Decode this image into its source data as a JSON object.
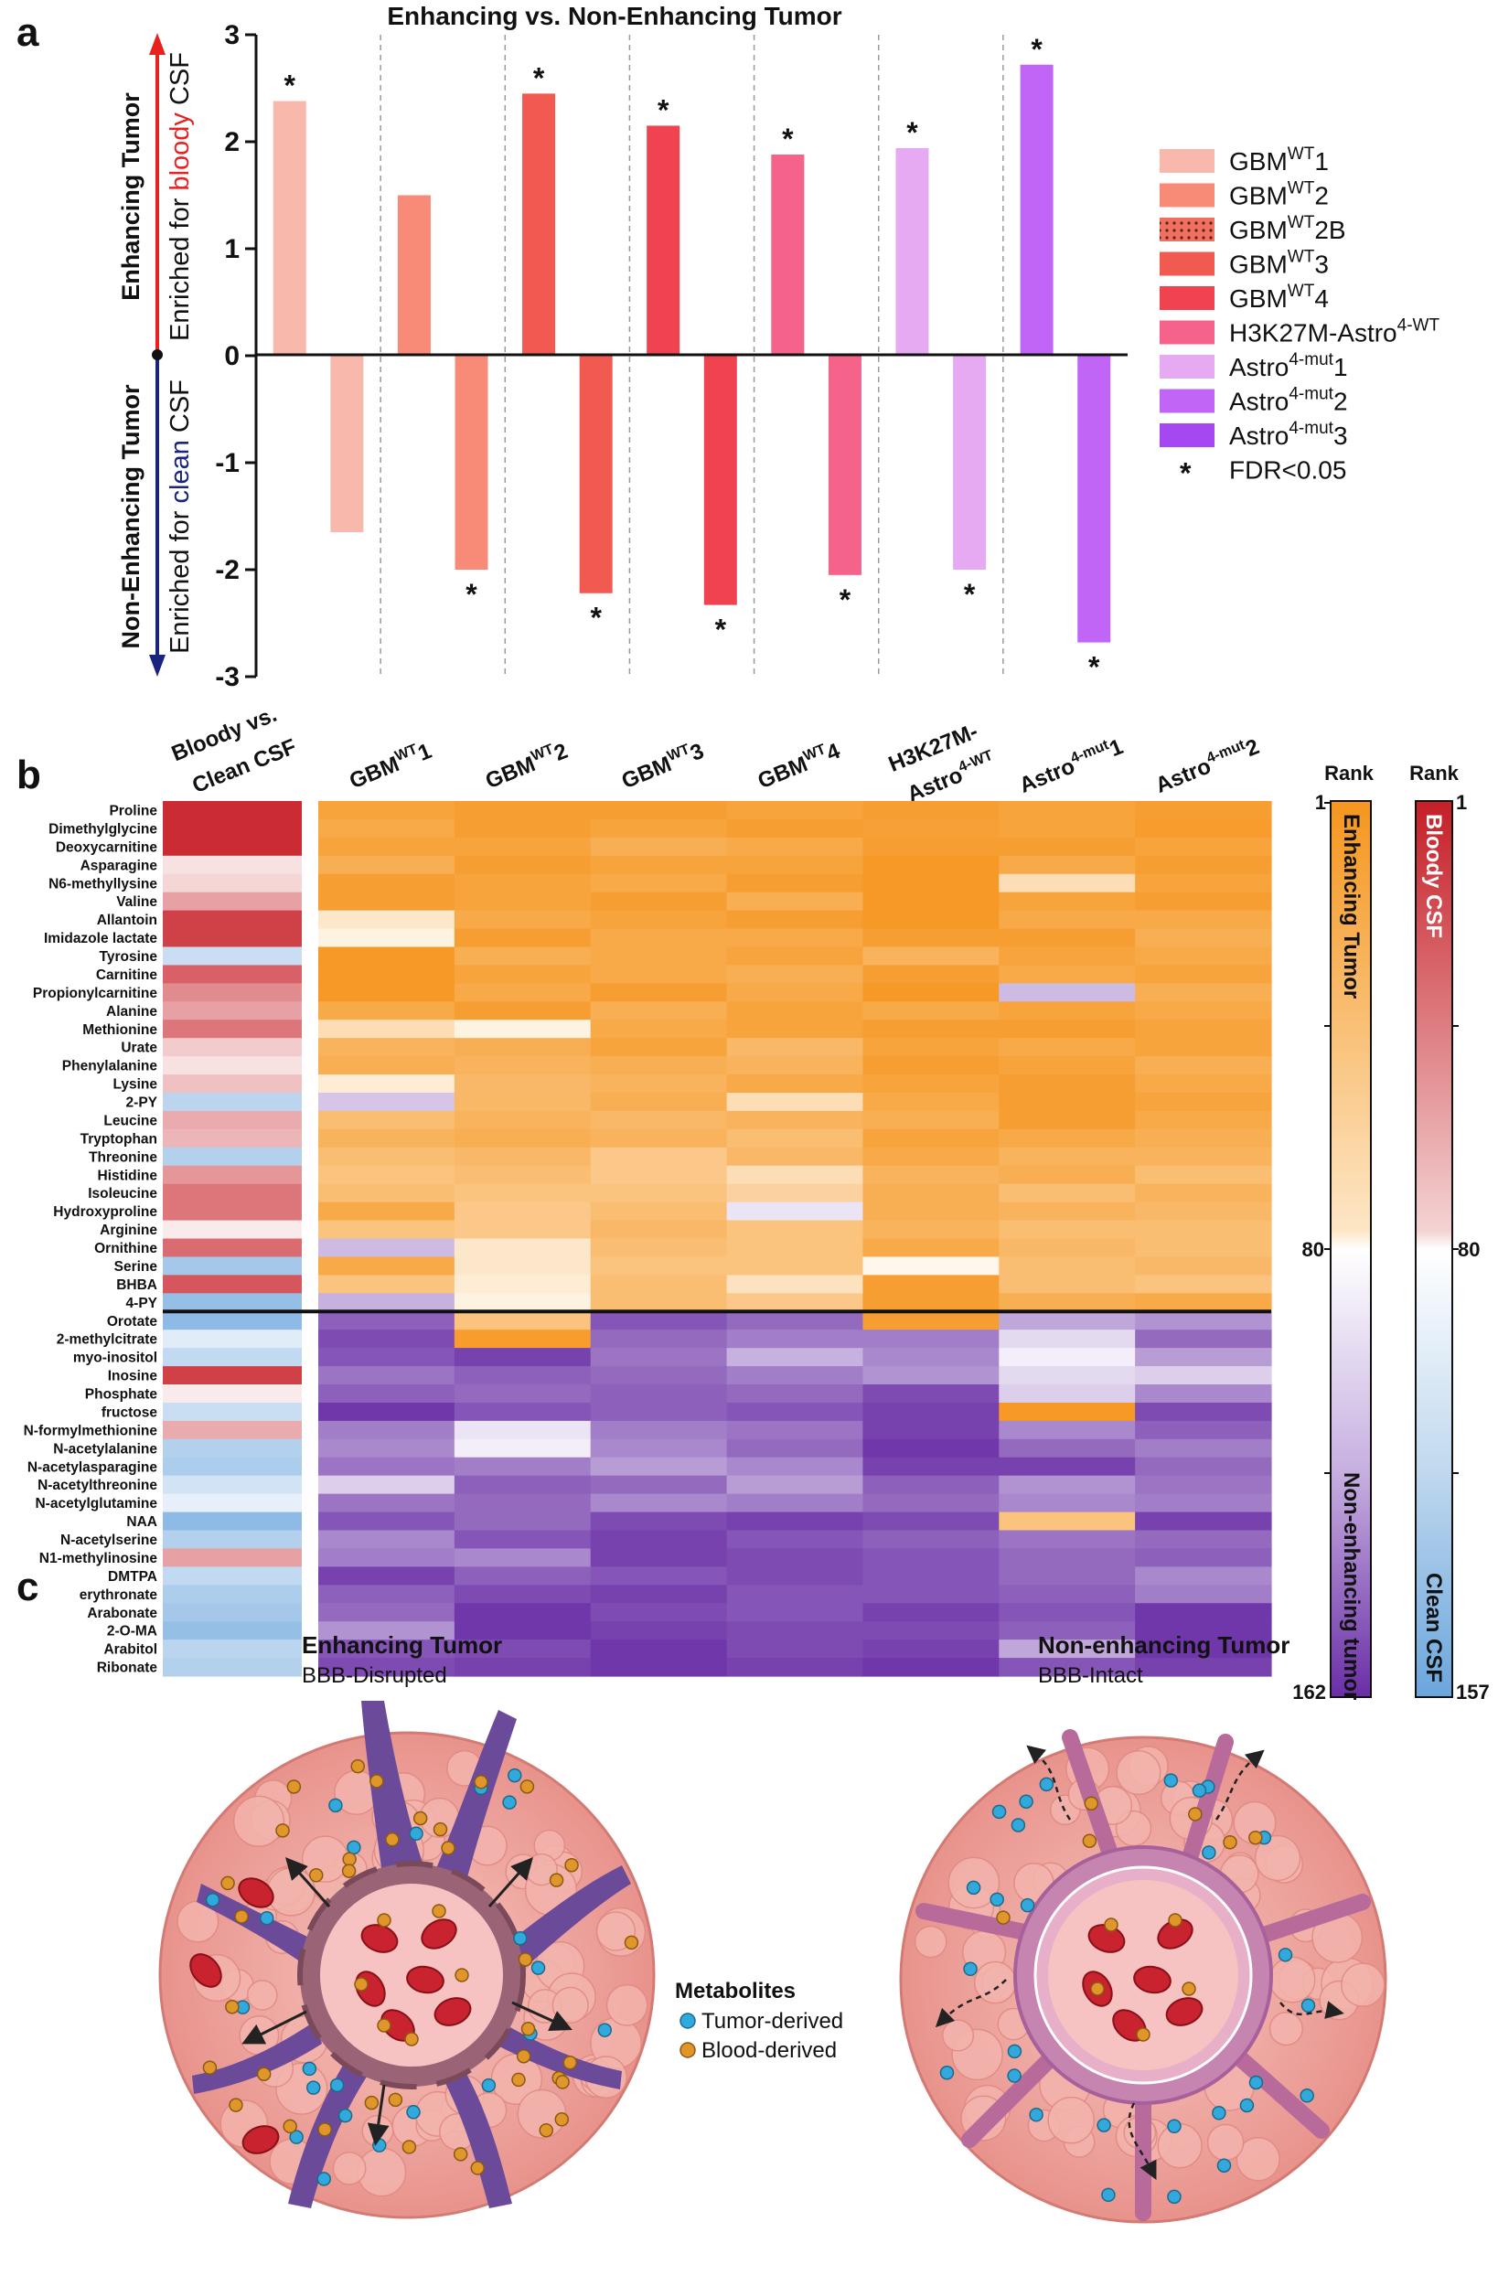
{
  "panels": {
    "a": "a",
    "b": "b",
    "c": "c"
  },
  "chart_data": [
    {
      "type": "bar",
      "title": "Enhancing vs. Non-Enhancing Tumor",
      "ylim": [
        -3,
        3
      ],
      "yticks": [
        "3",
        "2",
        "1",
        "0",
        "-1",
        "-2",
        "-3"
      ],
      "ylabel_top": "Enhancing Tumor",
      "ylabel_top_sub_prefix": "Enriched for ",
      "ylabel_top_sub_color_word": "bloody",
      "ylabel_top_sub_suffix": " CSF",
      "ylabel_bottom": "Non-Enhancing Tumor",
      "ylabel_bottom_sub_prefix": "Enriched for ",
      "ylabel_bottom_sub_color_word": "clean",
      "ylabel_bottom_sub_suffix": " CSF",
      "bars": [
        {
          "value": 2.38,
          "color": "#f9b8ac",
          "sig": "*"
        },
        {
          "value": -1.65,
          "color": "#f9b8ac",
          "sig": ""
        },
        {
          "value": 1.5,
          "color": "#f88a78",
          "sig": ""
        },
        {
          "value": -2.0,
          "color": "#f88a78",
          "sig": "*"
        },
        {
          "value": 2.45,
          "color": "#f05a50",
          "sig": "*"
        },
        {
          "value": -2.22,
          "color": "#f05a50",
          "sig": "*"
        },
        {
          "value": 2.15,
          "color": "#ef4450",
          "sig": "*"
        },
        {
          "value": -2.33,
          "color": "#ef4450",
          "sig": "*"
        },
        {
          "value": 1.88,
          "color": "#f5638a",
          "sig": "*"
        },
        {
          "value": -2.05,
          "color": "#f5638a",
          "sig": "*"
        },
        {
          "value": 1.94,
          "color": "#e6aaf3",
          "sig": "*"
        },
        {
          "value": -2.0,
          "color": "#e6aaf3",
          "sig": "*"
        },
        {
          "value": 2.72,
          "color": "#c065f6",
          "sig": "*"
        },
        {
          "value": -2.68,
          "color": "#c065f6",
          "sig": "*"
        }
      ],
      "legend": [
        {
          "base": "GBM",
          "sup": "WT",
          "suffix": "1",
          "color": "#f9b8ac",
          "pattern": false
        },
        {
          "base": "GBM",
          "sup": "WT",
          "suffix": "2",
          "color": "#f88a78",
          "pattern": false
        },
        {
          "base": "GBM",
          "sup": "WT",
          "suffix": "2B",
          "color": "#f07060",
          "pattern": true
        },
        {
          "base": "GBM",
          "sup": "WT",
          "suffix": "3",
          "color": "#f05a50",
          "pattern": false
        },
        {
          "base": "GBM",
          "sup": "WT",
          "suffix": "4",
          "color": "#ef4450",
          "pattern": false
        },
        {
          "base": "H3K27M-Astro",
          "sup": "4-WT",
          "suffix": "",
          "color": "#f5638a",
          "pattern": false
        },
        {
          "base": "Astro",
          "sup": "4-mut",
          "suffix": "1",
          "color": "#e6aaf3",
          "pattern": false
        },
        {
          "base": "Astro",
          "sup": "4-mut",
          "suffix": "2",
          "color": "#c065f6",
          "pattern": false
        },
        {
          "base": "Astro",
          "sup": "4-mut",
          "suffix": "3",
          "color": "#a548f2",
          "pattern": false
        }
      ],
      "legend_fdr": "FDR<0.05",
      "legend_fdr_symbol": "*"
    },
    {
      "type": "heatmap",
      "left_header_line1": "Bloody vs.",
      "left_header_line2": "Clean CSF",
      "columns": [
        {
          "line1": "GBM",
          "sup": "WT",
          "suffix": "1",
          "line2": ""
        },
        {
          "line1": "GBM",
          "sup": "WT",
          "suffix": "2",
          "line2": ""
        },
        {
          "line1": "GBM",
          "sup": "WT",
          "suffix": "3",
          "line2": ""
        },
        {
          "line1": "GBM",
          "sup": "WT",
          "suffix": "4",
          "line2": ""
        },
        {
          "line1": "H3K27M-",
          "sup": "",
          "suffix": "",
          "line2": "Astro",
          "line2_sup": "4-WT"
        },
        {
          "line1": "Astro",
          "sup": "4-mut",
          "suffix": "1",
          "line2": ""
        },
        {
          "line1": "Astro",
          "sup": "4-mut",
          "suffix": "2",
          "line2": ""
        }
      ],
      "rows": [
        "Proline",
        "Dimethylglycine",
        "Deoxycarnitine",
        "Asparagine",
        "N6-methyllysine",
        "Valine",
        "Allantoin",
        "Imidazole lactate",
        "Tyrosine",
        "Carnitine",
        "Propionylcarnitine",
        "Alanine",
        "Methionine",
        "Urate",
        "Phenylalanine",
        "Lysine",
        "2-PY",
        "Leucine",
        "Tryptophan",
        "Threonine",
        "Histidine",
        "Isoleucine",
        "Hydroxyproline",
        "Arginine",
        "Ornithine",
        "Serine",
        "BHBA",
        "4-PY",
        "Orotate",
        "2-methylcitrate",
        "myo-inositol",
        "Inosine",
        "Phosphate",
        "fructose",
        "N-formylmethionine",
        "N-acetylalanine",
        "N-acetylasparagine",
        "N-acetylthreonine",
        "N-acetylglutamine",
        "NAA",
        "N-acetylserine",
        "N1-methylinosine",
        "DMTPA",
        "erythronate",
        "Arabonate",
        "2-O-MA",
        "Arabitol",
        "Ribonate"
      ],
      "left_column_values": [
        0.95,
        0.95,
        0.95,
        0.1,
        0.15,
        0.4,
        0.85,
        0.85,
        -0.3,
        0.7,
        0.5,
        0.4,
        0.6,
        0.2,
        0.1,
        0.25,
        -0.4,
        0.35,
        0.3,
        -0.45,
        0.45,
        0.6,
        0.6,
        0.05,
        0.65,
        -0.55,
        0.75,
        -0.65,
        -0.7,
        -0.15,
        -0.35,
        0.85,
        0.05,
        -0.3,
        0.35,
        -0.45,
        -0.5,
        -0.25,
        -0.1,
        -0.7,
        -0.45,
        0.4,
        -0.35,
        -0.5,
        -0.55,
        -0.65,
        -0.4,
        -0.45
      ],
      "values": [
        [
          0.85,
          0.9,
          0.9,
          0.85,
          0.9,
          0.85,
          0.9
        ],
        [
          0.8,
          0.9,
          0.85,
          0.9,
          0.88,
          0.85,
          0.92
        ],
        [
          0.85,
          0.85,
          0.75,
          0.8,
          0.9,
          0.9,
          0.85
        ],
        [
          0.75,
          0.9,
          0.85,
          0.85,
          0.95,
          0.8,
          0.9
        ],
        [
          0.9,
          0.85,
          0.8,
          0.9,
          0.95,
          0.3,
          0.85
        ],
        [
          0.9,
          0.85,
          0.9,
          0.75,
          0.95,
          0.85,
          0.9
        ],
        [
          0.2,
          0.8,
          0.85,
          0.9,
          0.95,
          0.8,
          0.8
        ],
        [
          0.1,
          0.9,
          0.8,
          0.8,
          0.9,
          0.9,
          0.75
        ],
        [
          0.95,
          0.75,
          0.8,
          0.85,
          0.7,
          0.85,
          0.8
        ],
        [
          0.95,
          0.85,
          0.8,
          0.75,
          0.9,
          0.8,
          0.85
        ],
        [
          0.95,
          0.8,
          0.9,
          0.8,
          0.95,
          -0.3,
          0.75
        ],
        [
          0.8,
          0.9,
          0.75,
          0.85,
          0.8,
          0.85,
          0.8
        ],
        [
          0.3,
          0.1,
          0.8,
          0.85,
          0.9,
          0.9,
          0.85
        ],
        [
          0.7,
          0.75,
          0.85,
          0.65,
          0.85,
          0.8,
          0.85
        ],
        [
          0.75,
          0.7,
          0.75,
          0.7,
          0.9,
          0.85,
          0.75
        ],
        [
          0.15,
          0.65,
          0.7,
          0.8,
          0.85,
          0.9,
          0.8
        ],
        [
          -0.25,
          0.65,
          0.75,
          0.3,
          0.8,
          0.9,
          0.85
        ],
        [
          0.6,
          0.7,
          0.65,
          0.7,
          0.75,
          0.9,
          0.8
        ],
        [
          0.7,
          0.75,
          0.7,
          0.6,
          0.85,
          0.8,
          0.75
        ],
        [
          0.6,
          0.65,
          0.5,
          0.65,
          0.8,
          0.7,
          0.7
        ],
        [
          0.55,
          0.6,
          0.5,
          0.3,
          0.7,
          0.75,
          0.6
        ],
        [
          0.6,
          0.55,
          0.55,
          0.4,
          0.75,
          0.6,
          0.7
        ],
        [
          0.8,
          0.5,
          0.6,
          -0.1,
          0.75,
          0.7,
          0.65
        ],
        [
          0.55,
          0.5,
          0.65,
          0.55,
          0.7,
          0.6,
          0.6
        ],
        [
          -0.3,
          0.2,
          0.6,
          0.55,
          0.8,
          0.65,
          0.6
        ],
        [
          0.8,
          0.2,
          0.55,
          0.55,
          0.05,
          0.6,
          0.65
        ],
        [
          0.55,
          0.15,
          0.6,
          0.25,
          0.9,
          0.6,
          0.55
        ],
        [
          -0.35,
          0.1,
          0.6,
          0.5,
          0.9,
          0.75,
          0.8
        ],
        [
          -0.75,
          0.55,
          -0.8,
          -0.7,
          0.9,
          -0.4,
          -0.5
        ],
        [
          -0.85,
          0.92,
          -0.7,
          -0.6,
          -0.6,
          -0.15,
          -0.7
        ],
        [
          -0.8,
          -0.9,
          -0.65,
          -0.35,
          -0.55,
          -0.05,
          -0.45
        ],
        [
          -0.65,
          -0.75,
          -0.7,
          -0.6,
          -0.5,
          -0.15,
          -0.2
        ],
        [
          -0.75,
          -0.7,
          -0.75,
          -0.7,
          -0.85,
          -0.2,
          -0.55
        ],
        [
          -0.95,
          -0.8,
          -0.75,
          -0.8,
          -0.9,
          0.95,
          -0.85
        ],
        [
          -0.6,
          -0.1,
          -0.6,
          -0.65,
          -0.9,
          -0.55,
          -0.75
        ],
        [
          -0.55,
          -0.05,
          -0.55,
          -0.7,
          -0.95,
          -0.7,
          -0.6
        ],
        [
          -0.65,
          -0.6,
          -0.45,
          -0.55,
          -0.9,
          -0.9,
          -0.7
        ],
        [
          -0.2,
          -0.75,
          -0.7,
          -0.45,
          -0.75,
          -0.5,
          -0.65
        ],
        [
          -0.65,
          -0.7,
          -0.55,
          -0.6,
          -0.7,
          -0.55,
          -0.6
        ],
        [
          -0.8,
          -0.7,
          -0.85,
          -0.9,
          -0.85,
          0.55,
          -0.9
        ],
        [
          -0.55,
          -0.8,
          -0.9,
          -0.8,
          -0.75,
          -0.65,
          -0.7
        ],
        [
          -0.6,
          -0.55,
          -0.9,
          -0.85,
          -0.8,
          -0.7,
          -0.75
        ],
        [
          -0.9,
          -0.75,
          -0.8,
          -0.85,
          -0.8,
          -0.7,
          -0.55
        ],
        [
          -0.75,
          -0.85,
          -0.9,
          -0.8,
          -0.8,
          -0.75,
          -0.6
        ],
        [
          -0.7,
          -0.95,
          -0.85,
          -0.8,
          -0.9,
          -0.8,
          -0.95
        ],
        [
          -0.5,
          -0.95,
          -0.9,
          -0.85,
          -0.85,
          -0.75,
          -0.95
        ],
        [
          -0.8,
          -0.85,
          -0.95,
          -0.85,
          -0.9,
          -0.4,
          -0.95
        ],
        [
          -0.85,
          -0.9,
          -0.95,
          -0.9,
          -0.95,
          -0.8,
          -0.9
        ]
      ],
      "divider_after_row": 27,
      "scale_enh": {
        "title": "Rank",
        "top": "1",
        "mid": "80",
        "bottom": "162",
        "label_top": "Enhancing Tumor",
        "label_bottom": "Non-enhancing tumor"
      },
      "scale_csf": {
        "title": "Rank",
        "top": "1",
        "mid": "80",
        "bottom": "157",
        "label_top": "Bloody CSF",
        "label_bottom": "Clean CSF"
      }
    }
  ],
  "illustration": {
    "left_title": "Enhancing Tumor",
    "left_subtitle": "BBB-Disrupted",
    "right_title": "Non-enhancing Tumor",
    "right_subtitle": "BBB-Intact",
    "legend_title": "Metabolites",
    "legend_tumor": "Tumor-derived",
    "legend_blood": "Blood-derived",
    "tumor_color": "#31a9dc",
    "blood_color": "#e0962a"
  }
}
